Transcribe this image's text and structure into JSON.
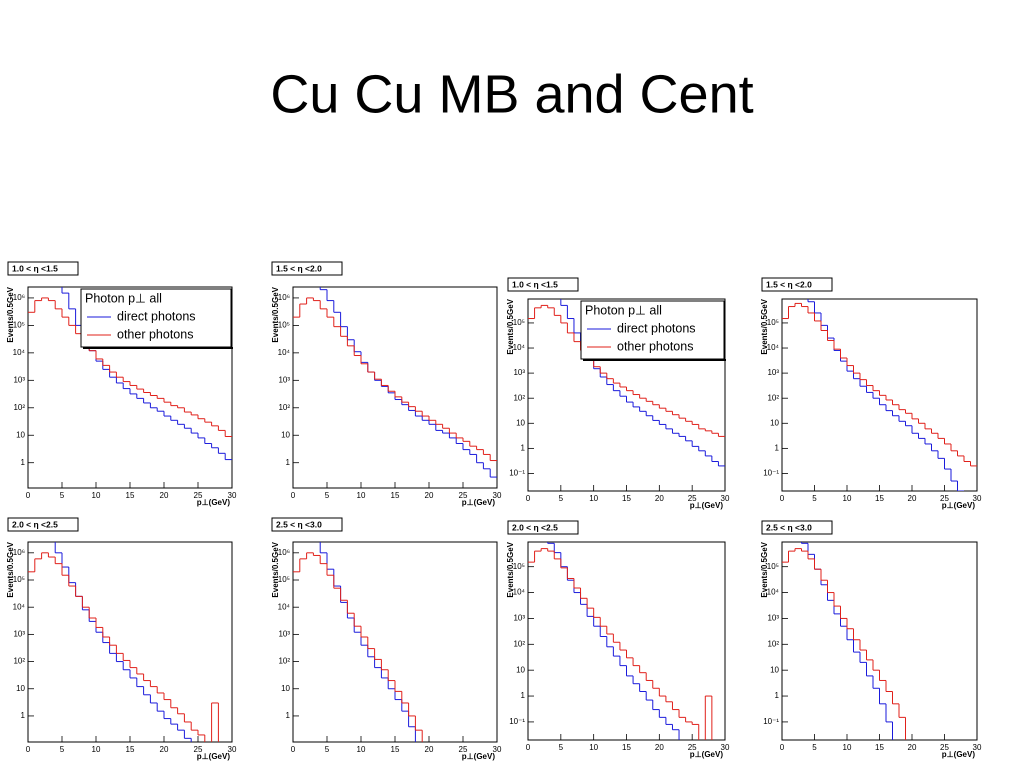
{
  "title": "Cu Cu MB and Cent",
  "chart_data": [
    {
      "type": "histogram",
      "title": "1.0 < η <1.5",
      "xlabel": "p⊥(GeV)",
      "ylabel": "Events/0.5GeV",
      "log_y": true,
      "xlim": [
        0,
        30
      ],
      "ylim": [
        0.12,
        2500000
      ],
      "xticks": [
        0,
        5,
        10,
        15,
        20,
        25,
        30
      ],
      "yticks": [
        1,
        10,
        {
          "value": 100,
          "label": "10²"
        },
        {
          "value": 1000,
          "label": "10³"
        },
        {
          "value": 10000,
          "label": "10⁴"
        },
        {
          "value": 100000,
          "label": "10⁵"
        },
        {
          "value": 1000000,
          "label": "10⁶"
        }
      ],
      "bins": [
        0,
        1,
        2,
        3,
        4,
        5,
        6,
        7,
        8,
        9,
        10,
        11,
        12,
        13,
        14,
        15,
        16,
        17,
        18,
        19,
        20,
        21,
        22,
        23,
        24,
        25,
        26,
        27,
        28,
        29,
        30
      ],
      "legend_title": "Photon p⊥  all",
      "series": [
        {
          "name": "direct photons",
          "color": "#1a1adb",
          "values": [
            3000000,
            3000000,
            3000000,
            3000000,
            3000000,
            1500000,
            400000,
            100000,
            30000,
            12000,
            5000,
            2500,
            1300,
            800,
            500,
            320,
            220,
            150,
            100,
            75,
            50,
            35,
            25,
            18,
            12,
            8,
            5,
            3.5,
            2.2,
            1.3
          ]
        },
        {
          "name": "other photons",
          "color": "#e0201a",
          "values": [
            300000,
            800000,
            1000000,
            800000,
            400000,
            200000,
            100000,
            50000,
            25000,
            12000,
            6000,
            3500,
            2000,
            1300,
            900,
            650,
            480,
            360,
            280,
            220,
            160,
            120,
            100,
            70,
            55,
            40,
            30,
            22,
            15,
            9
          ]
        }
      ]
    },
    {
      "type": "histogram",
      "title": "1.5 < η <2.0",
      "xlabel": "p⊥(GeV)",
      "ylabel": "Events/0.5GeV",
      "log_y": true,
      "xlim": [
        0,
        30
      ],
      "ylim": [
        0.12,
        2500000
      ],
      "xticks": [
        0,
        5,
        10,
        15,
        20,
        25,
        30
      ],
      "yticks": [
        1,
        10,
        {
          "value": 100,
          "label": "10²"
        },
        {
          "value": 1000,
          "label": "10³"
        },
        {
          "value": 10000,
          "label": "10⁴"
        },
        {
          "value": 100000,
          "label": "10⁵"
        },
        {
          "value": 1000000,
          "label": "10⁶"
        }
      ],
      "bins": [
        0,
        1,
        2,
        3,
        4,
        5,
        6,
        7,
        8,
        9,
        10,
        11,
        12,
        13,
        14,
        15,
        16,
        17,
        18,
        19,
        20,
        21,
        22,
        23,
        24,
        25,
        26,
        27,
        28,
        29,
        30
      ],
      "series": [
        {
          "color": "#1a1adb",
          "values": [
            3000000,
            3000000,
            3000000,
            3000000,
            2000000,
            800000,
            300000,
            90000,
            30000,
            11000,
            4500,
            2000,
            1000,
            600,
            350,
            200,
            130,
            80,
            50,
            35,
            25,
            15,
            12,
            8,
            5,
            3,
            2,
            1,
            0.6,
            0.3
          ]
        },
        {
          "color": "#e0201a",
          "values": [
            200000,
            600000,
            1000000,
            800000,
            400000,
            200000,
            90000,
            40000,
            18000,
            8000,
            4000,
            2000,
            1100,
            650,
            400,
            250,
            160,
            110,
            75,
            50,
            35,
            25,
            18,
            12,
            8,
            6,
            4,
            3,
            2,
            1.2
          ]
        }
      ]
    },
    {
      "type": "histogram",
      "title": "1.0 < η <1.5",
      "xlabel": "p⊥(GeV)",
      "ylabel": "Events/0.5GeV",
      "log_y": true,
      "xlim": [
        0,
        30
      ],
      "ylim": [
        0.02,
        900000
      ],
      "xticks": [
        0,
        5,
        10,
        15,
        20,
        25,
        30
      ],
      "yticks": [
        {
          "value": 0.1,
          "label": "10⁻¹"
        },
        1,
        10,
        {
          "value": 100,
          "label": "10²"
        },
        {
          "value": 1000,
          "label": "10³"
        },
        {
          "value": 10000,
          "label": "10⁴"
        },
        {
          "value": 100000,
          "label": "10⁵"
        }
      ],
      "bins": [
        0,
        1,
        2,
        3,
        4,
        5,
        6,
        7,
        8,
        9,
        10,
        11,
        12,
        13,
        14,
        15,
        16,
        17,
        18,
        19,
        20,
        21,
        22,
        23,
        24,
        25,
        26,
        27,
        28,
        29,
        30
      ],
      "legend_title": "Photon p⊥  all",
      "series": [
        {
          "name": "direct photons",
          "color": "#1a1adb",
          "values": [
            1000000,
            1000000,
            1000000,
            1000000,
            1000000,
            500000,
            150000,
            40000,
            12000,
            4000,
            1500,
            700,
            350,
            200,
            120,
            70,
            45,
            30,
            20,
            13,
            9,
            6,
            4,
            3,
            2,
            1.2,
            0.8,
            0.5,
            0.3,
            0.2
          ]
        },
        {
          "name": "other photons",
          "color": "#e0201a",
          "values": [
            150000,
            400000,
            500000,
            400000,
            200000,
            100000,
            40000,
            18000,
            8000,
            3500,
            1800,
            1000,
            600,
            400,
            280,
            200,
            140,
            100,
            75,
            55,
            40,
            30,
            22,
            16,
            12,
            9,
            6,
            5,
            4,
            3
          ]
        }
      ]
    },
    {
      "type": "histogram",
      "title": "1.5 < η <2.0",
      "xlabel": "p⊥(GeV)",
      "ylabel": "Events/0.5GeV",
      "log_y": true,
      "xlim": [
        0,
        30
      ],
      "ylim": [
        0.02,
        900000
      ],
      "xticks": [
        0,
        5,
        10,
        15,
        20,
        25,
        30
      ],
      "yticks": [
        {
          "value": 0.1,
          "label": "10⁻¹"
        },
        1,
        10,
        {
          "value": 100,
          "label": "10²"
        },
        {
          "value": 1000,
          "label": "10³"
        },
        {
          "value": 10000,
          "label": "10⁴"
        },
        {
          "value": 100000,
          "label": "10⁵"
        }
      ],
      "bins": [
        0,
        1,
        2,
        3,
        4,
        5,
        6,
        7,
        8,
        9,
        10,
        11,
        12,
        13,
        14,
        15,
        16,
        17,
        18,
        19,
        20,
        21,
        22,
        23,
        24,
        25,
        26,
        27,
        28,
        29,
        30
      ],
      "series": [
        {
          "color": "#1a1adb",
          "values": [
            1000000,
            1000000,
            1000000,
            1000000,
            700000,
            250000,
            80000,
            25000,
            8000,
            3000,
            1200,
            600,
            300,
            170,
            100,
            55,
            32,
            20,
            12,
            8,
            4,
            2.5,
            1.5,
            0.8,
            0.4,
            0.15,
            0.05,
            0.02,
            0,
            0
          ]
        },
        {
          "color": "#e0201a",
          "values": [
            150000,
            450000,
            600000,
            450000,
            250000,
            120000,
            50000,
            20000,
            9000,
            4000,
            2000,
            1000,
            550,
            320,
            200,
            130,
            85,
            55,
            35,
            25,
            15,
            10,
            6,
            4,
            2.5,
            1.5,
            0.8,
            0.5,
            0.3,
            0.2
          ]
        }
      ]
    },
    {
      "type": "histogram",
      "title": "2.0 < η <2.5",
      "xlabel": "p⊥(GeV)",
      "ylabel": "Events/0.5GeV",
      "log_y": true,
      "xlim": [
        0,
        30
      ],
      "ylim": [
        0.11,
        2500000
      ],
      "xticks": [
        0,
        5,
        10,
        15,
        20,
        25,
        30
      ],
      "yticks": [
        1,
        10,
        {
          "value": 100,
          "label": "10²"
        },
        {
          "value": 1000,
          "label": "10³"
        },
        {
          "value": 10000,
          "label": "10⁴"
        },
        {
          "value": 100000,
          "label": "10⁵"
        },
        {
          "value": 1000000,
          "label": "10⁶"
        }
      ],
      "bins": [
        0,
        1,
        2,
        3,
        4,
        5,
        6,
        7,
        8,
        9,
        10,
        11,
        12,
        13,
        14,
        15,
        16,
        17,
        18,
        19,
        20,
        21,
        22,
        23,
        24,
        25,
        26,
        27,
        28,
        29,
        30
      ],
      "series": [
        {
          "color": "#1a1adb",
          "values": [
            3000000,
            3000000,
            3000000,
            3000000,
            1000000,
            300000,
            80000,
            25000,
            8000,
            3000,
            1200,
            500,
            200,
            100,
            50,
            25,
            12,
            6,
            3,
            1.5,
            0.8,
            0.5,
            0.3,
            0.15,
            0,
            0,
            0,
            0,
            0,
            0
          ]
        },
        {
          "color": "#e0201a",
          "values": [
            200000,
            600000,
            1000000,
            700000,
            400000,
            150000,
            60000,
            25000,
            10000,
            4000,
            1800,
            800,
            400,
            200,
            110,
            60,
            35,
            20,
            12,
            7,
            4,
            2,
            1.2,
            0.6,
            0.3,
            0.2,
            0,
            3,
            0,
            0
          ]
        }
      ]
    },
    {
      "type": "histogram",
      "title": "2.5 < η <3.0",
      "xlabel": "p⊥(GeV)",
      "ylabel": "Events/0.5GeV",
      "log_y": true,
      "xlim": [
        0,
        30
      ],
      "ylim": [
        0.11,
        2500000
      ],
      "xticks": [
        0,
        5,
        10,
        15,
        20,
        25,
        30
      ],
      "yticks": [
        1,
        10,
        {
          "value": 100,
          "label": "10²"
        },
        {
          "value": 1000,
          "label": "10³"
        },
        {
          "value": 10000,
          "label": "10⁴"
        },
        {
          "value": 100000,
          "label": "10⁵"
        },
        {
          "value": 1000000,
          "label": "10⁶"
        }
      ],
      "bins": [
        0,
        1,
        2,
        3,
        4,
        5,
        6,
        7,
        8,
        9,
        10,
        11,
        12,
        13,
        14,
        15,
        16,
        17,
        18,
        19,
        20,
        21,
        22,
        23,
        24,
        25,
        26,
        27,
        28,
        29,
        30
      ],
      "series": [
        {
          "color": "#1a1adb",
          "values": [
            3000000,
            3000000,
            3000000,
            3000000,
            1000000,
            250000,
            60000,
            15000,
            4000,
            1200,
            400,
            150,
            60,
            25,
            10,
            4,
            1.5,
            0.4,
            0,
            0,
            0,
            0,
            0,
            0,
            0,
            0,
            0,
            0,
            0,
            0
          ]
        },
        {
          "color": "#e0201a",
          "values": [
            200000,
            600000,
            1000000,
            800000,
            400000,
            150000,
            50000,
            18000,
            6000,
            2000,
            800,
            300,
            120,
            50,
            20,
            8,
            3,
            1,
            0.3,
            0,
            0,
            0,
            0,
            0,
            0,
            0,
            0,
            0,
            0,
            0
          ]
        }
      ]
    },
    {
      "type": "histogram",
      "title": "2.0 < η <2.5",
      "xlabel": "p⊥(GeV)",
      "ylabel": "Events/0.5GeV",
      "log_y": true,
      "xlim": [
        0,
        30
      ],
      "ylim": [
        0.02,
        900000
      ],
      "xticks": [
        0,
        5,
        10,
        15,
        20,
        25,
        30
      ],
      "yticks": [
        {
          "value": 0.1,
          "label": "10⁻¹"
        },
        1,
        10,
        {
          "value": 100,
          "label": "10²"
        },
        {
          "value": 1000,
          "label": "10³"
        },
        {
          "value": 10000,
          "label": "10⁴"
        },
        {
          "value": 100000,
          "label": "10⁵"
        }
      ],
      "bins": [
        0,
        1,
        2,
        3,
        4,
        5,
        6,
        7,
        8,
        9,
        10,
        11,
        12,
        13,
        14,
        15,
        16,
        17,
        18,
        19,
        20,
        21,
        22,
        23,
        24,
        25,
        26,
        27,
        28,
        29,
        30
      ],
      "series": [
        {
          "color": "#1a1adb",
          "values": [
            1000000,
            1000000,
            1000000,
            800000,
            350000,
            100000,
            30000,
            10000,
            3500,
            1200,
            500,
            200,
            80,
            35,
            15,
            6,
            3,
            1.5,
            0.7,
            0.3,
            0.15,
            0.08,
            0.05,
            0,
            0,
            0,
            0,
            0,
            0,
            0
          ]
        },
        {
          "color": "#e0201a",
          "values": [
            150000,
            400000,
            500000,
            400000,
            200000,
            90000,
            35000,
            15000,
            6000,
            2500,
            1100,
            500,
            250,
            120,
            60,
            30,
            15,
            8,
            4,
            2,
            1,
            0.6,
            0.3,
            0.15,
            0.1,
            0.08,
            0,
            1,
            0,
            0
          ]
        }
      ]
    },
    {
      "type": "histogram",
      "title": "2.5 < η <3.0",
      "xlabel": "p⊥(GeV)",
      "ylabel": "Events/0.5GeV",
      "log_y": true,
      "xlim": [
        0,
        30
      ],
      "ylim": [
        0.02,
        900000
      ],
      "xticks": [
        0,
        5,
        10,
        15,
        20,
        25,
        30
      ],
      "yticks": [
        {
          "value": 0.1,
          "label": "10⁻¹"
        },
        1,
        10,
        {
          "value": 100,
          "label": "10²"
        },
        {
          "value": 1000,
          "label": "10³"
        },
        {
          "value": 10000,
          "label": "10⁴"
        },
        {
          "value": 100000,
          "label": "10⁵"
        }
      ],
      "bins": [
        0,
        1,
        2,
        3,
        4,
        5,
        6,
        7,
        8,
        9,
        10,
        11,
        12,
        13,
        14,
        15,
        16,
        17,
        18,
        19,
        20,
        21,
        22,
        23,
        24,
        25,
        26,
        27,
        28,
        29,
        30
      ],
      "series": [
        {
          "color": "#1a1adb",
          "values": [
            1000000,
            1000000,
            1000000,
            800000,
            300000,
            80000,
            20000,
            5000,
            1500,
            500,
            150,
            50,
            20,
            6,
            2,
            0.5,
            0.1,
            0,
            0,
            0,
            0,
            0,
            0,
            0,
            0,
            0,
            0,
            0,
            0,
            0
          ]
        },
        {
          "color": "#e0201a",
          "values": [
            150000,
            400000,
            500000,
            400000,
            200000,
            80000,
            30000,
            10000,
            3000,
            1000,
            400,
            150,
            60,
            25,
            10,
            4,
            1.5,
            0.5,
            0.15,
            0,
            0,
            0,
            0,
            0,
            0,
            0,
            0,
            0,
            0,
            0
          ]
        }
      ]
    }
  ]
}
